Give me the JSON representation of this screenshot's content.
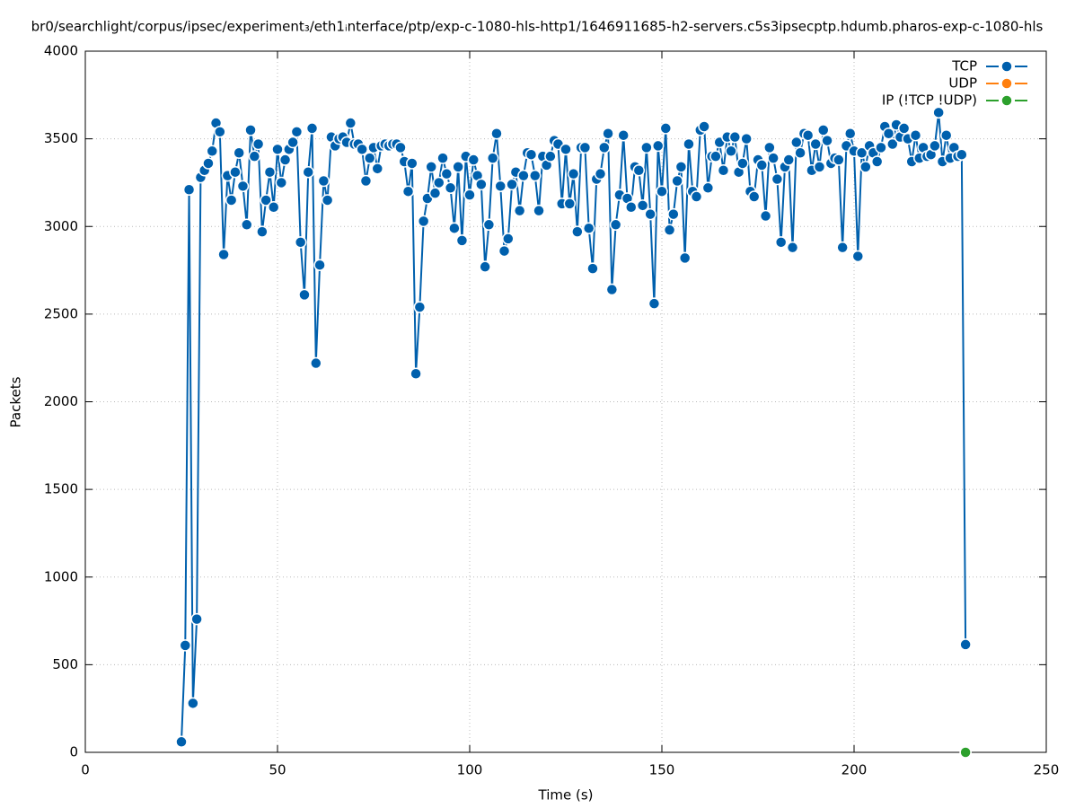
{
  "chart_data": {
    "type": "line",
    "title": "br0/searchlight/corpus/ipsec/experiment₃/eth1ᵢnterface/ptp/exp-c-1080-hls-http1/1646911685-h2-servers.c5s3ipsecptp.hdumb.pharos-exp-c-1080-hls",
    "xlabel": "Time (s)",
    "ylabel": "Packets",
    "xlim": [
      0,
      250
    ],
    "xticks": [
      0,
      50,
      100,
      150,
      200,
      250
    ],
    "ylim": [
      0,
      4000
    ],
    "yticks": [
      0,
      500,
      1000,
      1500,
      2000,
      2500,
      3000,
      3500,
      4000
    ],
    "grid": true,
    "legend": "top-right",
    "series": [
      {
        "name": "TCP",
        "color": "#0060ad",
        "x": [
          25,
          26,
          27,
          28,
          29,
          30,
          31,
          32,
          33,
          34,
          35,
          36,
          37,
          38,
          39,
          40,
          41,
          42,
          43,
          44,
          45,
          46,
          47,
          48,
          49,
          50,
          51,
          52,
          53,
          54,
          55,
          56,
          57,
          58,
          59,
          60,
          61,
          62,
          63,
          64,
          65,
          66,
          67,
          68,
          69,
          70,
          71,
          72,
          73,
          74,
          75,
          76,
          77,
          78,
          79,
          80,
          81,
          82,
          83,
          84,
          85,
          86,
          87,
          88,
          89,
          90,
          91,
          92,
          93,
          94,
          95,
          96,
          97,
          98,
          99,
          100,
          101,
          102,
          103,
          104,
          105,
          106,
          107,
          108,
          109,
          110,
          111,
          112,
          113,
          114,
          115,
          116,
          117,
          118,
          119,
          120,
          121,
          122,
          123,
          124,
          125,
          126,
          127,
          128,
          129,
          130,
          131,
          132,
          133,
          134,
          135,
          136,
          137,
          138,
          139,
          140,
          141,
          142,
          143,
          144,
          145,
          146,
          147,
          148,
          149,
          150,
          151,
          152,
          153,
          154,
          155,
          156,
          157,
          158,
          159,
          160,
          161,
          162,
          163,
          164,
          165,
          166,
          167,
          168,
          169,
          170,
          171,
          172,
          173,
          174,
          175,
          176,
          177,
          178,
          179,
          180,
          181,
          182,
          183,
          184,
          185,
          186,
          187,
          188,
          189,
          190,
          191,
          192,
          193,
          194,
          195,
          196,
          197,
          198,
          199,
          200,
          201,
          202,
          203,
          204,
          205,
          206,
          207,
          208,
          209,
          210,
          211,
          212,
          213,
          214,
          215,
          216,
          217,
          218,
          219,
          220,
          221,
          222,
          223,
          224,
          225,
          226,
          227,
          228,
          229
        ],
        "values": [
          60,
          610,
          3210,
          280,
          760,
          3280,
          3320,
          3360,
          3430,
          3590,
          3540,
          2840,
          3290,
          3150,
          3310,
          3420,
          3230,
          3010,
          3550,
          3400,
          3470,
          2970,
          3150,
          3310,
          3110,
          3440,
          3250,
          3380,
          3440,
          3480,
          3540,
          2910,
          2610,
          3310,
          3560,
          2220,
          2780,
          3260,
          3150,
          3510,
          3460,
          3500,
          3510,
          3480,
          3590,
          3470,
          3470,
          3440,
          3260,
          3390,
          3450,
          3330,
          3460,
          3470,
          3460,
          3470,
          3470,
          3450,
          3370,
          3200,
          3360,
          2160,
          2540,
          3030,
          3160,
          3340,
          3190,
          3250,
          3390,
          3300,
          3220,
          2990,
          3340,
          2920,
          3400,
          3180,
          3380,
          3290,
          3240,
          2770,
          3010,
          3390,
          3530,
          3230,
          2860,
          2930,
          3240,
          3310,
          3090,
          3290,
          3420,
          3410,
          3290,
          3090,
          3400,
          3350,
          3400,
          3490,
          3470,
          3130,
          3440,
          3130,
          3300,
          2970,
          3450,
          3450,
          2990,
          2760,
          3270,
          3300,
          3450,
          3530,
          2640,
          3010,
          3180,
          3520,
          3160,
          3110,
          3340,
          3320,
          3120,
          3450,
          3070,
          2560,
          3460,
          3200,
          3560,
          2980,
          3070,
          3260,
          3340,
          2820,
          3470,
          3200,
          3170,
          3550,
          3570,
          3220,
          3400,
          3400,
          3480,
          3320,
          3510,
          3430,
          3510,
          3310,
          3360,
          3500,
          3200,
          3170,
          3380,
          3350,
          3060,
          3450,
          3390,
          3270,
          2910,
          3340,
          3380,
          2880,
          3480,
          3420,
          3530,
          3520,
          3320,
          3470,
          3340,
          3550,
          3490,
          3360,
          3390,
          3380,
          2880,
          3460,
          3530,
          3430,
          2830,
          3420,
          3340,
          3460,
          3420,
          3370,
          3450,
          3570,
          3530,
          3470,
          3580,
          3510,
          3560,
          3500,
          3370,
          3520,
          3390,
          3450,
          3400,
          3410,
          3460,
          3650,
          3370,
          3520,
          3390,
          3450,
          3400,
          3410,
          615
        ]
      },
      {
        "name": "UDP",
        "color": "#ff7f0e",
        "x": [
          229
        ],
        "values": [
          0
        ]
      },
      {
        "name": "IP (!TCP  !UDP)",
        "color": "#2ca02c",
        "x": [
          229
        ],
        "values": [
          0
        ]
      }
    ]
  }
}
